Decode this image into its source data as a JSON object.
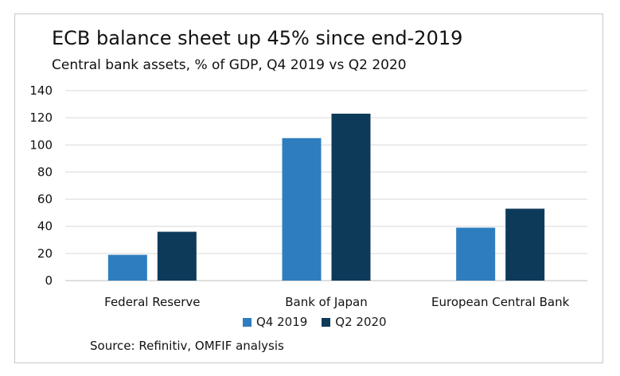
{
  "header": {
    "title": "ECB balance sheet up 45% since end-2019",
    "subtitle": "Central bank assets, % of GDP, Q4 2019 vs Q2 2020"
  },
  "source": "Source: Refinitiv, OMFIF analysis",
  "chart_data": {
    "type": "bar",
    "title": "ECB balance sheet up 45% since end-2019",
    "subtitle": "Central bank assets, % of GDP, Q4 2019 vs Q2 2020",
    "categories": [
      "Federal Reserve",
      "Bank of Japan",
      "European Central Bank"
    ],
    "series": [
      {
        "name": "Q4 2019",
        "color": "#2e7ebf",
        "values": [
          19,
          105,
          39
        ]
      },
      {
        "name": "Q2 2020",
        "color": "#0e3a5a",
        "values": [
          36,
          123,
          53
        ]
      }
    ],
    "ylim": [
      0,
      140
    ],
    "yticks": [
      "0",
      "20",
      "40",
      "60",
      "80",
      "100",
      "120",
      "140"
    ],
    "grid": true,
    "legend": "bottom"
  }
}
